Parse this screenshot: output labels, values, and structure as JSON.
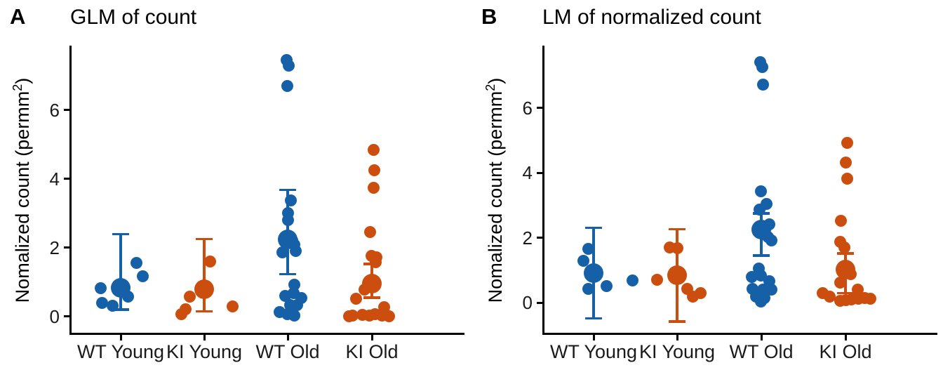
{
  "chart_data": [
    {
      "type": "scatter",
      "tag": "A",
      "title": "GLM of count",
      "ylabel_prefix": "Nomalized count (permm",
      "ylabel_sup": "2",
      "ylabel_suffix": ")",
      "categories": [
        "WT Young",
        "KI Young",
        "WT Old",
        "KI Old"
      ],
      "yticks": [
        0,
        2,
        4,
        6
      ],
      "ylim": [
        -0.47,
        7.87
      ],
      "grid": false,
      "legend": "none",
      "group_colors": [
        "#1660a8",
        "#cc4e0e",
        "#1660a8",
        "#cc4e0e"
      ],
      "series": [
        {
          "name": "WT Young",
          "color": "#1660a8",
          "mean": 0.84,
          "ci": [
            0.2,
            2.4
          ],
          "points": [
            [
              -29,
              0.82
            ],
            [
              -27,
              0.39
            ],
            [
              -12,
              0.31
            ],
            [
              10,
              0.58
            ],
            [
              22,
              1.55
            ],
            [
              31,
              1.17
            ]
          ]
        },
        {
          "name": "KI Young",
          "color": "#cc4e0e",
          "mean": 0.8,
          "ci": [
            0.15,
            2.25
          ],
          "points": [
            [
              8,
              1.6
            ],
            [
              -21,
              0.58
            ],
            [
              -27,
              0.22
            ],
            [
              -33,
              0.08
            ],
            [
              40,
              0.29
            ]
          ]
        },
        {
          "name": "WT Old",
          "color": "#1660a8",
          "mean": 2.25,
          "ci": [
            1.23,
            3.68
          ],
          "points": [
            [
              -2,
              7.45
            ],
            [
              1,
              7.28
            ],
            [
              -1,
              6.7
            ],
            [
              4,
              3.37
            ],
            [
              0,
              3.0
            ],
            [
              0,
              2.8
            ],
            [
              6,
              2.22
            ],
            [
              9,
              2.08
            ],
            [
              11,
              1.91
            ],
            [
              -8,
              1.86
            ],
            [
              9,
              0.92
            ],
            [
              8,
              0.68
            ],
            [
              -4,
              0.61
            ],
            [
              19,
              0.54
            ],
            [
              3,
              0.34
            ],
            [
              13,
              0.34
            ],
            [
              -12,
              0.14
            ],
            [
              -1,
              0.08
            ],
            [
              9,
              0.03
            ]
          ]
        },
        {
          "name": "KI Old",
          "color": "#cc4e0e",
          "mean": 0.95,
          "ci": [
            0.55,
            1.53
          ],
          "points": [
            [
              2,
              4.85
            ],
            [
              3,
              4.25
            ],
            [
              2,
              3.74
            ],
            [
              -3,
              2.45
            ],
            [
              -1,
              1.77
            ],
            [
              6,
              1.72
            ],
            [
              5,
              1.57
            ],
            [
              -11,
              0.78
            ],
            [
              -23,
              0.51
            ],
            [
              17,
              0.27
            ],
            [
              -33,
              0.01
            ],
            [
              -28,
              0.03
            ],
            [
              -14,
              0.06
            ],
            [
              -4,
              0.03
            ],
            [
              4,
              0.08
            ],
            [
              14,
              0.03
            ],
            [
              24,
              0.01
            ]
          ]
        }
      ]
    },
    {
      "type": "scatter",
      "tag": "B",
      "title": "LM of normalized count",
      "ylabel_prefix": "Nomalized count (permm",
      "ylabel_sup": "2",
      "ylabel_suffix": ")",
      "categories": [
        "WT Young",
        "KI Young",
        "WT Old",
        "KI Old"
      ],
      "yticks": [
        0,
        2,
        4,
        6
      ],
      "ylim": [
        -0.93,
        7.92
      ],
      "grid": false,
      "legend": "none",
      "group_colors": [
        "#1660a8",
        "#cc4e0e",
        "#1660a8",
        "#cc4e0e"
      ],
      "series": [
        {
          "name": "WT Young",
          "color": "#1660a8",
          "mean": 0.92,
          "ci": [
            -0.49,
            2.31
          ],
          "points": [
            [
              -8,
              1.66
            ],
            [
              -15,
              1.29
            ],
            [
              -8,
              0.43
            ],
            [
              18,
              0.51
            ],
            [
              55,
              0.68
            ]
          ]
        },
        {
          "name": "KI Young",
          "color": "#cc4e0e",
          "mean": 0.85,
          "ci": [
            -0.58,
            2.26
          ],
          "points": [
            [
              -11,
              1.7
            ],
            [
              0,
              1.68
            ],
            [
              -29,
              0.71
            ],
            [
              14,
              0.43
            ],
            [
              33,
              0.3
            ],
            [
              22,
              0.18
            ]
          ]
        },
        {
          "name": "WT Old",
          "color": "#1660a8",
          "mean": 2.24,
          "ci": [
            1.45,
            2.75
          ],
          "points": [
            [
              -2,
              7.41
            ],
            [
              1,
              7.27
            ],
            [
              2,
              6.72
            ],
            [
              -1,
              3.43
            ],
            [
              7,
              3.05
            ],
            [
              -3,
              2.86
            ],
            [
              11,
              2.42
            ],
            [
              4,
              2.17
            ],
            [
              9,
              2.02
            ],
            [
              14,
              1.92
            ],
            [
              -4,
              1.05
            ],
            [
              -1,
              0.83
            ],
            [
              -14,
              0.8
            ],
            [
              11,
              0.65
            ],
            [
              -13,
              0.43
            ],
            [
              2,
              0.4
            ],
            [
              14,
              0.4
            ],
            [
              -8,
              0.18
            ],
            [
              4,
              0.15
            ],
            [
              -1,
              0.04
            ]
          ]
        },
        {
          "name": "KI Old",
          "color": "#cc4e0e",
          "mean": 1.02,
          "ci": [
            0.29,
            1.52
          ],
          "points": [
            [
              2,
              4.93
            ],
            [
              0,
              4.32
            ],
            [
              2,
              3.83
            ],
            [
              -7,
              2.53
            ],
            [
              -8,
              1.87
            ],
            [
              -2,
              1.7
            ],
            [
              7,
              0.87
            ],
            [
              -8,
              0.61
            ],
            [
              17,
              0.4
            ],
            [
              -33,
              0.29
            ],
            [
              -23,
              0.18
            ],
            [
              -8,
              0.06
            ],
            [
              0,
              0.08
            ],
            [
              8,
              0.1
            ],
            [
              18,
              0.11
            ],
            [
              27,
              0.14
            ],
            [
              35,
              0.11
            ]
          ]
        }
      ]
    }
  ]
}
